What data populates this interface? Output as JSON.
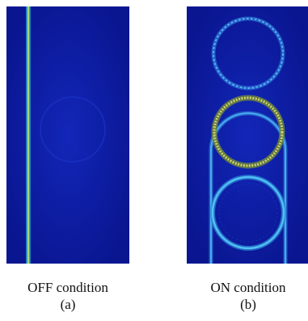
{
  "panels": [
    {
      "id": "a",
      "state_label": "OFF condition",
      "tag": "(a)"
    },
    {
      "id": "b",
      "state_label": "ON condition",
      "tag": "(b)"
    }
  ],
  "colors": {
    "background": "#0c1a9e",
    "waveguide_off": "#9bd07a",
    "ring_top": "#4aa3e8",
    "ring_middle": "#c8c05a",
    "ring_bottom": "#3fb4ee",
    "bus_waveguide": "#3a9ce6"
  }
}
